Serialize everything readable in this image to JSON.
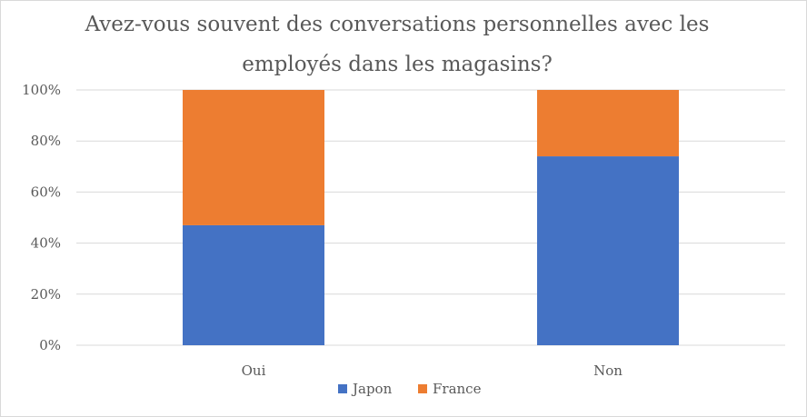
{
  "chart_data": {
    "type": "bar",
    "stacked": true,
    "percent_stacked": true,
    "title_lines": [
      "Avez-vous souvent des conversations personnelles avec les",
      "employés dans les magasins?"
    ],
    "categories": [
      "Oui",
      "Non"
    ],
    "series": [
      {
        "name": "Japon",
        "color": "#4472C4",
        "values": [
          47,
          74
        ]
      },
      {
        "name": "France",
        "color": "#ED7D31",
        "values": [
          53,
          26
        ]
      }
    ],
    "y_ticks": [
      "0%",
      "20%",
      "40%",
      "60%",
      "80%",
      "100%"
    ],
    "ylim": [
      0,
      100
    ],
    "grid": true,
    "gridline_color": "#d9d9d9",
    "legend_position": "bottom"
  }
}
